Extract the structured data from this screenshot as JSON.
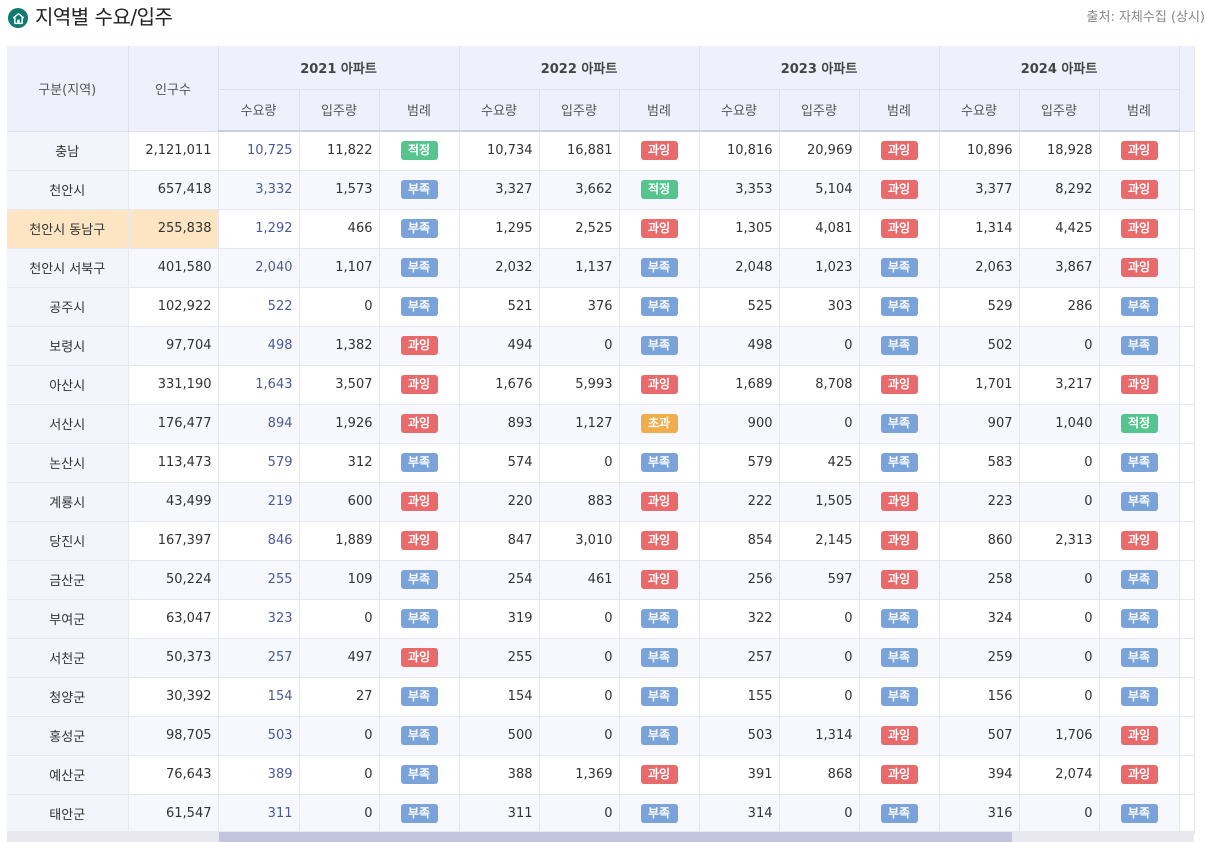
{
  "page": {
    "title": "지역별 수요/입주",
    "source": "출처: 자체수집 (상시)",
    "icon": "home-icon"
  },
  "colors": {
    "accent": "#0f7a72",
    "over": "#e96a6a",
    "short": "#7aa3da",
    "ok": "#55c48e",
    "exceed": "#f0ad4e",
    "highlight": "#fde4c3"
  },
  "table": {
    "region_header": "구분(지역)",
    "population_header": "인구수",
    "years": [
      "2021 아파트",
      "2022 아파트",
      "2023 아파트",
      "2024 아파트"
    ],
    "sub_headers": [
      "수요량",
      "입주량",
      "범례"
    ],
    "rows": [
      {
        "region": "충남",
        "population": "2,121,011",
        "cells": [
          [
            "10,725",
            "11,822",
            "적정"
          ],
          [
            "10,734",
            "16,881",
            "과잉"
          ],
          [
            "10,816",
            "20,969",
            "과잉"
          ],
          [
            "10,896",
            "18,928",
            "과잉"
          ]
        ]
      },
      {
        "region": "천안시",
        "population": "657,418",
        "cells": [
          [
            "3,332",
            "1,573",
            "부족"
          ],
          [
            "3,327",
            "3,662",
            "적정"
          ],
          [
            "3,353",
            "5,104",
            "과잉"
          ],
          [
            "3,377",
            "8,292",
            "과잉"
          ]
        ]
      },
      {
        "region": "천안시 동남구",
        "population": "255,838",
        "highlight": true,
        "cells": [
          [
            "1,292",
            "466",
            "부족"
          ],
          [
            "1,295",
            "2,525",
            "과잉"
          ],
          [
            "1,305",
            "4,081",
            "과잉"
          ],
          [
            "1,314",
            "4,425",
            "과잉"
          ]
        ]
      },
      {
        "region": "천안시 서북구",
        "population": "401,580",
        "cells": [
          [
            "2,040",
            "1,107",
            "부족"
          ],
          [
            "2,032",
            "1,137",
            "부족"
          ],
          [
            "2,048",
            "1,023",
            "부족"
          ],
          [
            "2,063",
            "3,867",
            "과잉"
          ]
        ]
      },
      {
        "region": "공주시",
        "population": "102,922",
        "cells": [
          [
            "522",
            "0",
            "부족"
          ],
          [
            "521",
            "376",
            "부족"
          ],
          [
            "525",
            "303",
            "부족"
          ],
          [
            "529",
            "286",
            "부족"
          ]
        ]
      },
      {
        "region": "보령시",
        "population": "97,704",
        "cells": [
          [
            "498",
            "1,382",
            "과잉"
          ],
          [
            "494",
            "0",
            "부족"
          ],
          [
            "498",
            "0",
            "부족"
          ],
          [
            "502",
            "0",
            "부족"
          ]
        ]
      },
      {
        "region": "아산시",
        "population": "331,190",
        "cells": [
          [
            "1,643",
            "3,507",
            "과잉"
          ],
          [
            "1,676",
            "5,993",
            "과잉"
          ],
          [
            "1,689",
            "8,708",
            "과잉"
          ],
          [
            "1,701",
            "3,217",
            "과잉"
          ]
        ]
      },
      {
        "region": "서산시",
        "population": "176,477",
        "cells": [
          [
            "894",
            "1,926",
            "과잉"
          ],
          [
            "893",
            "1,127",
            "초과"
          ],
          [
            "900",
            "0",
            "부족"
          ],
          [
            "907",
            "1,040",
            "적정"
          ]
        ]
      },
      {
        "region": "논산시",
        "population": "113,473",
        "cells": [
          [
            "579",
            "312",
            "부족"
          ],
          [
            "574",
            "0",
            "부족"
          ],
          [
            "579",
            "425",
            "부족"
          ],
          [
            "583",
            "0",
            "부족"
          ]
        ]
      },
      {
        "region": "계룡시",
        "population": "43,499",
        "cells": [
          [
            "219",
            "600",
            "과잉"
          ],
          [
            "220",
            "883",
            "과잉"
          ],
          [
            "222",
            "1,505",
            "과잉"
          ],
          [
            "223",
            "0",
            "부족"
          ]
        ]
      },
      {
        "region": "당진시",
        "population": "167,397",
        "cells": [
          [
            "846",
            "1,889",
            "과잉"
          ],
          [
            "847",
            "3,010",
            "과잉"
          ],
          [
            "854",
            "2,145",
            "과잉"
          ],
          [
            "860",
            "2,313",
            "과잉"
          ]
        ]
      },
      {
        "region": "금산군",
        "population": "50,224",
        "cells": [
          [
            "255",
            "109",
            "부족"
          ],
          [
            "254",
            "461",
            "과잉"
          ],
          [
            "256",
            "597",
            "과잉"
          ],
          [
            "258",
            "0",
            "부족"
          ]
        ]
      },
      {
        "region": "부여군",
        "population": "63,047",
        "cells": [
          [
            "323",
            "0",
            "부족"
          ],
          [
            "319",
            "0",
            "부족"
          ],
          [
            "322",
            "0",
            "부족"
          ],
          [
            "324",
            "0",
            "부족"
          ]
        ]
      },
      {
        "region": "서천군",
        "population": "50,373",
        "cells": [
          [
            "257",
            "497",
            "과잉"
          ],
          [
            "255",
            "0",
            "부족"
          ],
          [
            "257",
            "0",
            "부족"
          ],
          [
            "259",
            "0",
            "부족"
          ]
        ]
      },
      {
        "region": "청양군",
        "population": "30,392",
        "cells": [
          [
            "154",
            "27",
            "부족"
          ],
          [
            "154",
            "0",
            "부족"
          ],
          [
            "155",
            "0",
            "부족"
          ],
          [
            "156",
            "0",
            "부족"
          ]
        ]
      },
      {
        "region": "홍성군",
        "population": "98,705",
        "cells": [
          [
            "503",
            "0",
            "부족"
          ],
          [
            "500",
            "0",
            "부족"
          ],
          [
            "503",
            "1,314",
            "과잉"
          ],
          [
            "507",
            "1,706",
            "과잉"
          ]
        ]
      },
      {
        "region": "예산군",
        "population": "76,643",
        "cells": [
          [
            "389",
            "0",
            "부족"
          ],
          [
            "388",
            "1,369",
            "과잉"
          ],
          [
            "391",
            "868",
            "과잉"
          ],
          [
            "394",
            "2,074",
            "과잉"
          ]
        ]
      },
      {
        "region": "태안군",
        "population": "61,547",
        "cells": [
          [
            "311",
            "0",
            "부족"
          ],
          [
            "311",
            "0",
            "부족"
          ],
          [
            "314",
            "0",
            "부족"
          ],
          [
            "316",
            "0",
            "부족"
          ]
        ]
      }
    ]
  }
}
